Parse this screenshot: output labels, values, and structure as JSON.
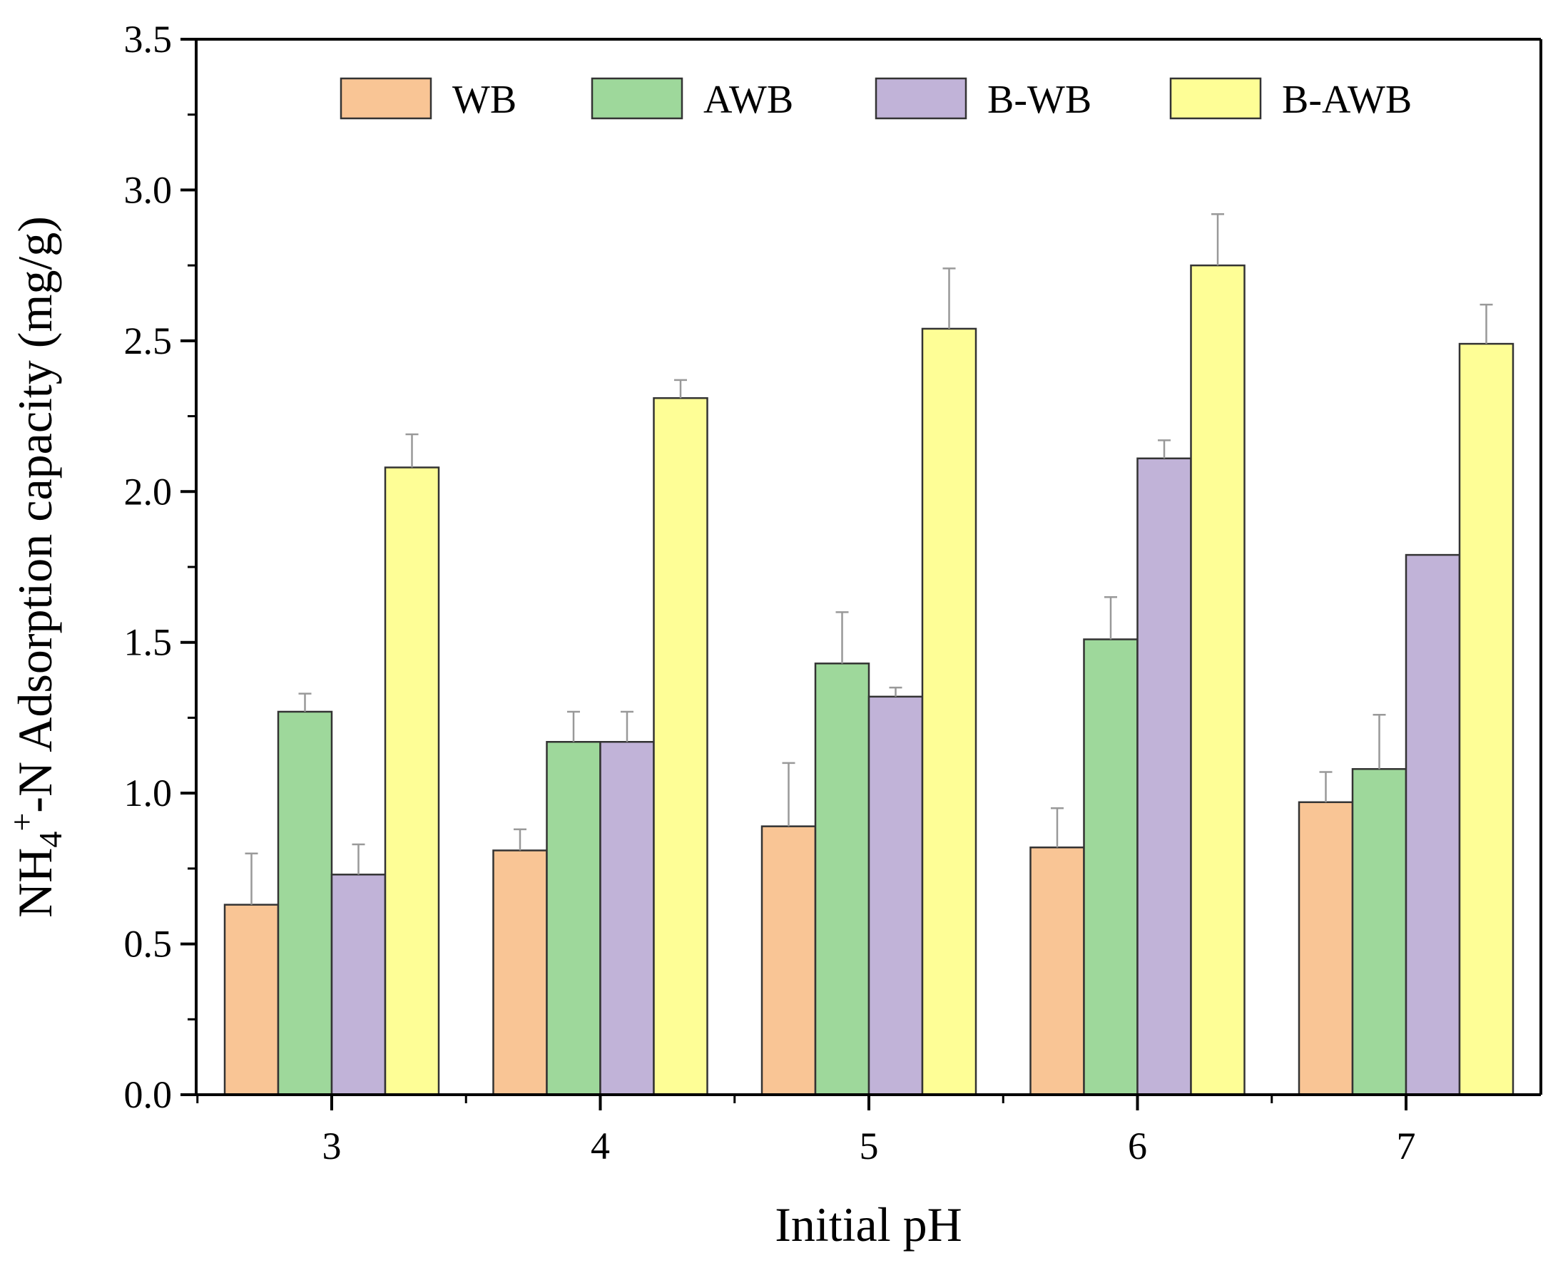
{
  "chart_data": {
    "type": "bar",
    "title": "",
    "xlabel": "Initial pH",
    "ylabel": {
      "prefix": "NH",
      "subscript": "4",
      "superscript": "+",
      "suffix": "-N Adsorption capacity (mg/g)"
    },
    "categories": [
      "3",
      "4",
      "5",
      "6",
      "7"
    ],
    "ylim": [
      0,
      3.5
    ],
    "yticks": [
      "0.0",
      "0.5",
      "1.0",
      "1.5",
      "2.0",
      "2.5",
      "3.0",
      "3.5"
    ],
    "ytick_values": [
      0,
      0.5,
      1.0,
      1.5,
      2.0,
      2.5,
      3.0,
      3.5
    ],
    "legend_position": "top",
    "grid": false,
    "series": [
      {
        "name": "WB",
        "color": "#f9c595",
        "values": [
          0.63,
          0.81,
          0.89,
          0.82,
          0.97
        ],
        "errors": [
          0.17,
          0.07,
          0.21,
          0.13,
          0.1
        ]
      },
      {
        "name": "AWB",
        "color": "#9ed89b",
        "values": [
          1.27,
          1.17,
          1.43,
          1.51,
          1.08
        ],
        "errors": [
          0.06,
          0.1,
          0.17,
          0.14,
          0.18
        ]
      },
      {
        "name": "B-WB",
        "color": "#c1b3d8",
        "values": [
          0.73,
          1.17,
          1.32,
          2.11,
          1.79
        ],
        "errors": [
          0.1,
          0.1,
          0.03,
          0.06,
          0.0
        ]
      },
      {
        "name": "B-AWB",
        "color": "#fefe96",
        "values": [
          2.08,
          2.31,
          2.54,
          2.75,
          2.49
        ],
        "errors": [
          0.11,
          0.06,
          0.2,
          0.17,
          0.13
        ]
      }
    ]
  }
}
